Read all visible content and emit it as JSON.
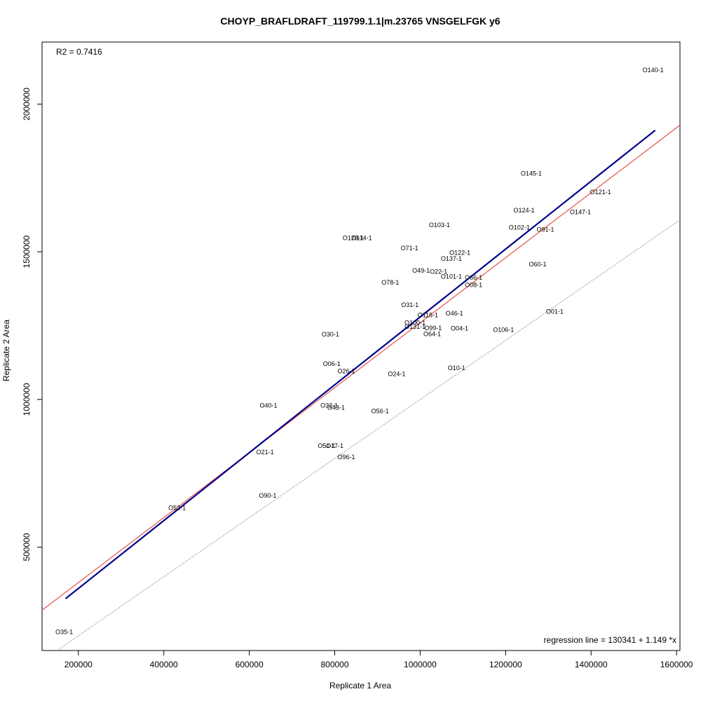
{
  "chart_data": {
    "type": "scatter",
    "title": "CHOYP_BRAFLDRAFT_119799.1.1|m.23765 VNSGELFGK y6",
    "xlabel": "Replicate 1 Area",
    "ylabel": "Replicate 2 Area",
    "xlim": [
      115000,
      1608000
    ],
    "ylim": [
      150000,
      2210000
    ],
    "x_ticks": [
      200000,
      400000,
      600000,
      800000,
      1000000,
      1200000,
      1400000,
      1600000
    ],
    "y_ticks": [
      500000,
      1000000,
      1500000,
      2000000
    ],
    "x_tick_labels": [
      "200000",
      "400000",
      "600000",
      "800000",
      "1000000",
      "1200000",
      "1400000",
      "1600000"
    ],
    "y_tick_labels": [
      "500000",
      "1000000",
      "1500000",
      "2000000"
    ],
    "r2_text": "R2 = 0.7416",
    "regression_text": "regression line = 130341 + 1.149 *x",
    "regression": {
      "intercept": 130341,
      "slope": 1.149,
      "x_range": [
        170000,
        1550000
      ],
      "color": "#00008B"
    },
    "reference_line": {
      "intercept": 160000,
      "slope": 1.1,
      "color": "#E8514A"
    },
    "identity_line": {
      "intercept": 0,
      "slope": 1,
      "color": "#555555",
      "style": "dotted"
    },
    "points": [
      {
        "label": "O140-1",
        "x": 1545000,
        "y": 2115000
      },
      {
        "label": "O145-1",
        "x": 1260000,
        "y": 1765000
      },
      {
        "label": "O121-1",
        "x": 1422000,
        "y": 1702000
      },
      {
        "label": "O124-1",
        "x": 1243000,
        "y": 1640000
      },
      {
        "label": "O147-1",
        "x": 1375000,
        "y": 1635000
      },
      {
        "label": "O103-1",
        "x": 1045000,
        "y": 1590000
      },
      {
        "label": "O102-1",
        "x": 1232000,
        "y": 1582000
      },
      {
        "label": "O91-1",
        "x": 1293000,
        "y": 1575000
      },
      {
        "label": "O128-1",
        "x": 843000,
        "y": 1547000
      },
      {
        "label": "O114-1",
        "x": 863000,
        "y": 1547000
      },
      {
        "label": "O71-1",
        "x": 975000,
        "y": 1512000
      },
      {
        "label": "O122-1",
        "x": 1093000,
        "y": 1497000
      },
      {
        "label": "O137-1",
        "x": 1073000,
        "y": 1477000
      },
      {
        "label": "O60-1",
        "x": 1275000,
        "y": 1458000
      },
      {
        "label": "O49-1",
        "x": 1002000,
        "y": 1436000
      },
      {
        "label": "O22-1",
        "x": 1043000,
        "y": 1433000
      },
      {
        "label": "O101-1",
        "x": 1073000,
        "y": 1416000
      },
      {
        "label": "O66-1",
        "x": 1125000,
        "y": 1412000
      },
      {
        "label": "O08-1",
        "x": 1125000,
        "y": 1388000
      },
      {
        "label": "O78-1",
        "x": 930000,
        "y": 1396000
      },
      {
        "label": "O31-1",
        "x": 976000,
        "y": 1320000
      },
      {
        "label": "O01-1",
        "x": 1315000,
        "y": 1298000
      },
      {
        "label": "O46-1",
        "x": 1080000,
        "y": 1292000
      },
      {
        "label": "O118-1",
        "x": 1018000,
        "y": 1286000
      },
      {
        "label": "O100-1",
        "x": 988000,
        "y": 1259000
      },
      {
        "label": "O131-1",
        "x": 988000,
        "y": 1246000
      },
      {
        "label": "O99-1",
        "x": 1030000,
        "y": 1242000
      },
      {
        "label": "O04-1",
        "x": 1092000,
        "y": 1240000
      },
      {
        "label": "O106-1",
        "x": 1195000,
        "y": 1236000
      },
      {
        "label": "O64-1",
        "x": 1028000,
        "y": 1222000
      },
      {
        "label": "O30-1",
        "x": 790000,
        "y": 1220000
      },
      {
        "label": "O06-1",
        "x": 793000,
        "y": 1121000
      },
      {
        "label": "O26-1",
        "x": 827000,
        "y": 1096000
      },
      {
        "label": "O10-1",
        "x": 1085000,
        "y": 1106000
      },
      {
        "label": "O24-1",
        "x": 945000,
        "y": 1086000
      },
      {
        "label": "O40-1",
        "x": 645000,
        "y": 980000
      },
      {
        "label": "O32-1",
        "x": 787000,
        "y": 980000
      },
      {
        "label": "O43-1",
        "x": 803000,
        "y": 972000
      },
      {
        "label": "O56-1",
        "x": 906000,
        "y": 960000
      },
      {
        "label": "O51-1",
        "x": 781000,
        "y": 843000
      },
      {
        "label": "O17-1",
        "x": 800000,
        "y": 843000
      },
      {
        "label": "O21-1",
        "x": 637000,
        "y": 822000
      },
      {
        "label": "O96-1",
        "x": 827000,
        "y": 805000
      },
      {
        "label": "O90-1",
        "x": 643000,
        "y": 675000
      },
      {
        "label": "O52-1",
        "x": 431000,
        "y": 633000
      },
      {
        "label": "O35-1",
        "x": 167000,
        "y": 213000
      }
    ]
  }
}
